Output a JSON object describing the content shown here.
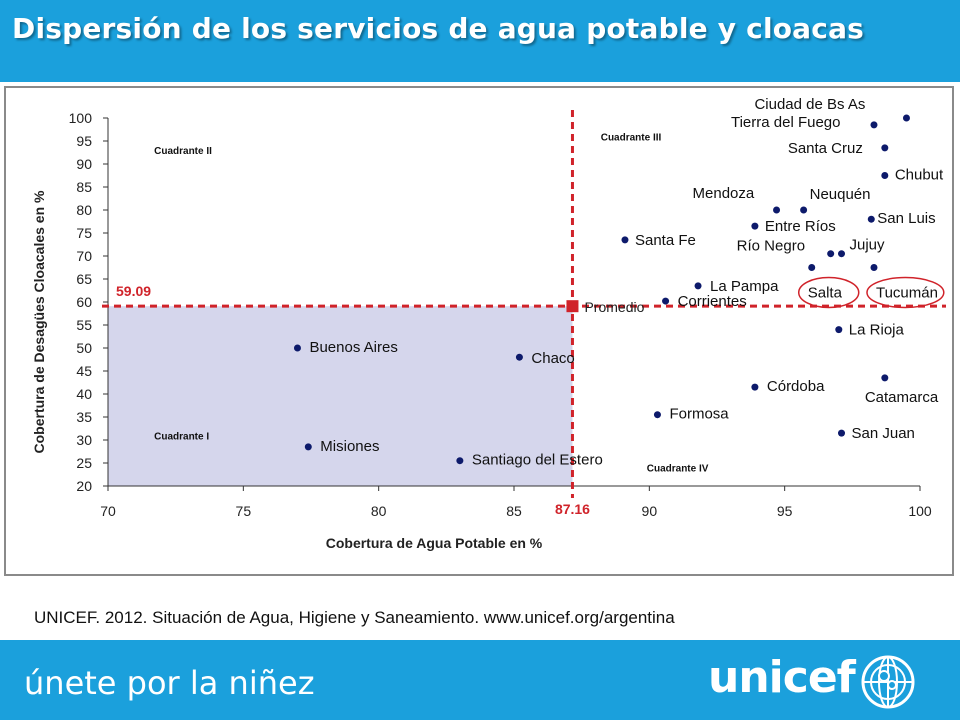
{
  "slide": {
    "title": "Dispersión de los servicios de agua potable y cloacas",
    "source": "UNICEF. 2012. Situación de Agua, Higiene y Saneamiento. www.unicef.org/argentina",
    "tagline": "únete por la niñez",
    "brand": "unicef",
    "colors": {
      "banner": "#1ba0dc",
      "point": "#0d1a6b",
      "promedio": "#d0232a",
      "quadrant_fill": "#b9badf",
      "highlight": "#d0232a"
    }
  },
  "chart_data": {
    "type": "scatter",
    "xlabel": "Cobertura de Agua Potable en %",
    "ylabel": "Cobertura de Desagües Cloacales en %",
    "xlim": [
      70,
      100
    ],
    "ylim": [
      20,
      100
    ],
    "xticks": [
      70,
      75,
      80,
      85,
      90,
      95,
      100
    ],
    "yticks": [
      20,
      25,
      30,
      35,
      40,
      45,
      50,
      55,
      60,
      65,
      70,
      75,
      80,
      85,
      90,
      95,
      100
    ],
    "grid": false,
    "average": {
      "label": "Promedio",
      "x": 87.16,
      "y": 59.09,
      "x_label": "87.16",
      "y_label": "59.09"
    },
    "quadrants": [
      {
        "label": "Cuadrante I",
        "x": 72,
        "y": 31
      },
      {
        "label": "Cuadrante II",
        "x": 72,
        "y": 93
      },
      {
        "label": "Cuadrante III",
        "x": 88.5,
        "y": 96
      },
      {
        "label": "Cuadrante IV",
        "x": 90.2,
        "y": 24
      }
    ],
    "points": [
      {
        "name": "Ciudad de Bs As",
        "x": 99.5,
        "y": 100,
        "circled": false
      },
      {
        "name": "Tierra del Fuego",
        "x": 98.3,
        "y": 98.5,
        "circled": false
      },
      {
        "name": "Santa Cruz",
        "x": 98.7,
        "y": 93.5,
        "circled": false
      },
      {
        "name": "Chubut",
        "x": 98.7,
        "y": 87.5,
        "circled": false
      },
      {
        "name": "Mendoza",
        "x": 94.7,
        "y": 80,
        "circled": false
      },
      {
        "name": "Neuquén",
        "x": 95.7,
        "y": 80,
        "circled": false
      },
      {
        "name": "Entre Ríos",
        "x": 93.9,
        "y": 76.5,
        "circled": false
      },
      {
        "name": "San Luis",
        "x": 98.2,
        "y": 78,
        "circled": false
      },
      {
        "name": "Santa Fe",
        "x": 89.1,
        "y": 73.5,
        "circled": false
      },
      {
        "name": "Río Negro",
        "x": 96.7,
        "y": 70.5,
        "circled": false
      },
      {
        "name": "Jujuy",
        "x": 97.1,
        "y": 70.5,
        "circled": false
      },
      {
        "name": "Salta",
        "x": 96.0,
        "y": 67.5,
        "circled": true
      },
      {
        "name": "Tucumán",
        "x": 98.3,
        "y": 67.5,
        "circled": true
      },
      {
        "name": "La Pampa",
        "x": 91.8,
        "y": 63.5,
        "circled": false
      },
      {
        "name": "Corrientes",
        "x": 90.6,
        "y": 60.2,
        "circled": false
      },
      {
        "name": "La Rioja",
        "x": 97.0,
        "y": 54,
        "circled": false
      },
      {
        "name": "Buenos Aires",
        "x": 77.0,
        "y": 50,
        "circled": false
      },
      {
        "name": "Chaco",
        "x": 85.2,
        "y": 48,
        "circled": false
      },
      {
        "name": "Catamarca",
        "x": 98.7,
        "y": 43.5,
        "circled": false
      },
      {
        "name": "Córdoba",
        "x": 93.9,
        "y": 41.5,
        "circled": false
      },
      {
        "name": "Formosa",
        "x": 90.3,
        "y": 35.5,
        "circled": false
      },
      {
        "name": "Misiones",
        "x": 77.4,
        "y": 28.5,
        "circled": false
      },
      {
        "name": "San Juan",
        "x": 97.1,
        "y": 31.5,
        "circled": false
      },
      {
        "name": "Santiago del Estero",
        "x": 83.0,
        "y": 25.5,
        "circled": false
      }
    ]
  }
}
